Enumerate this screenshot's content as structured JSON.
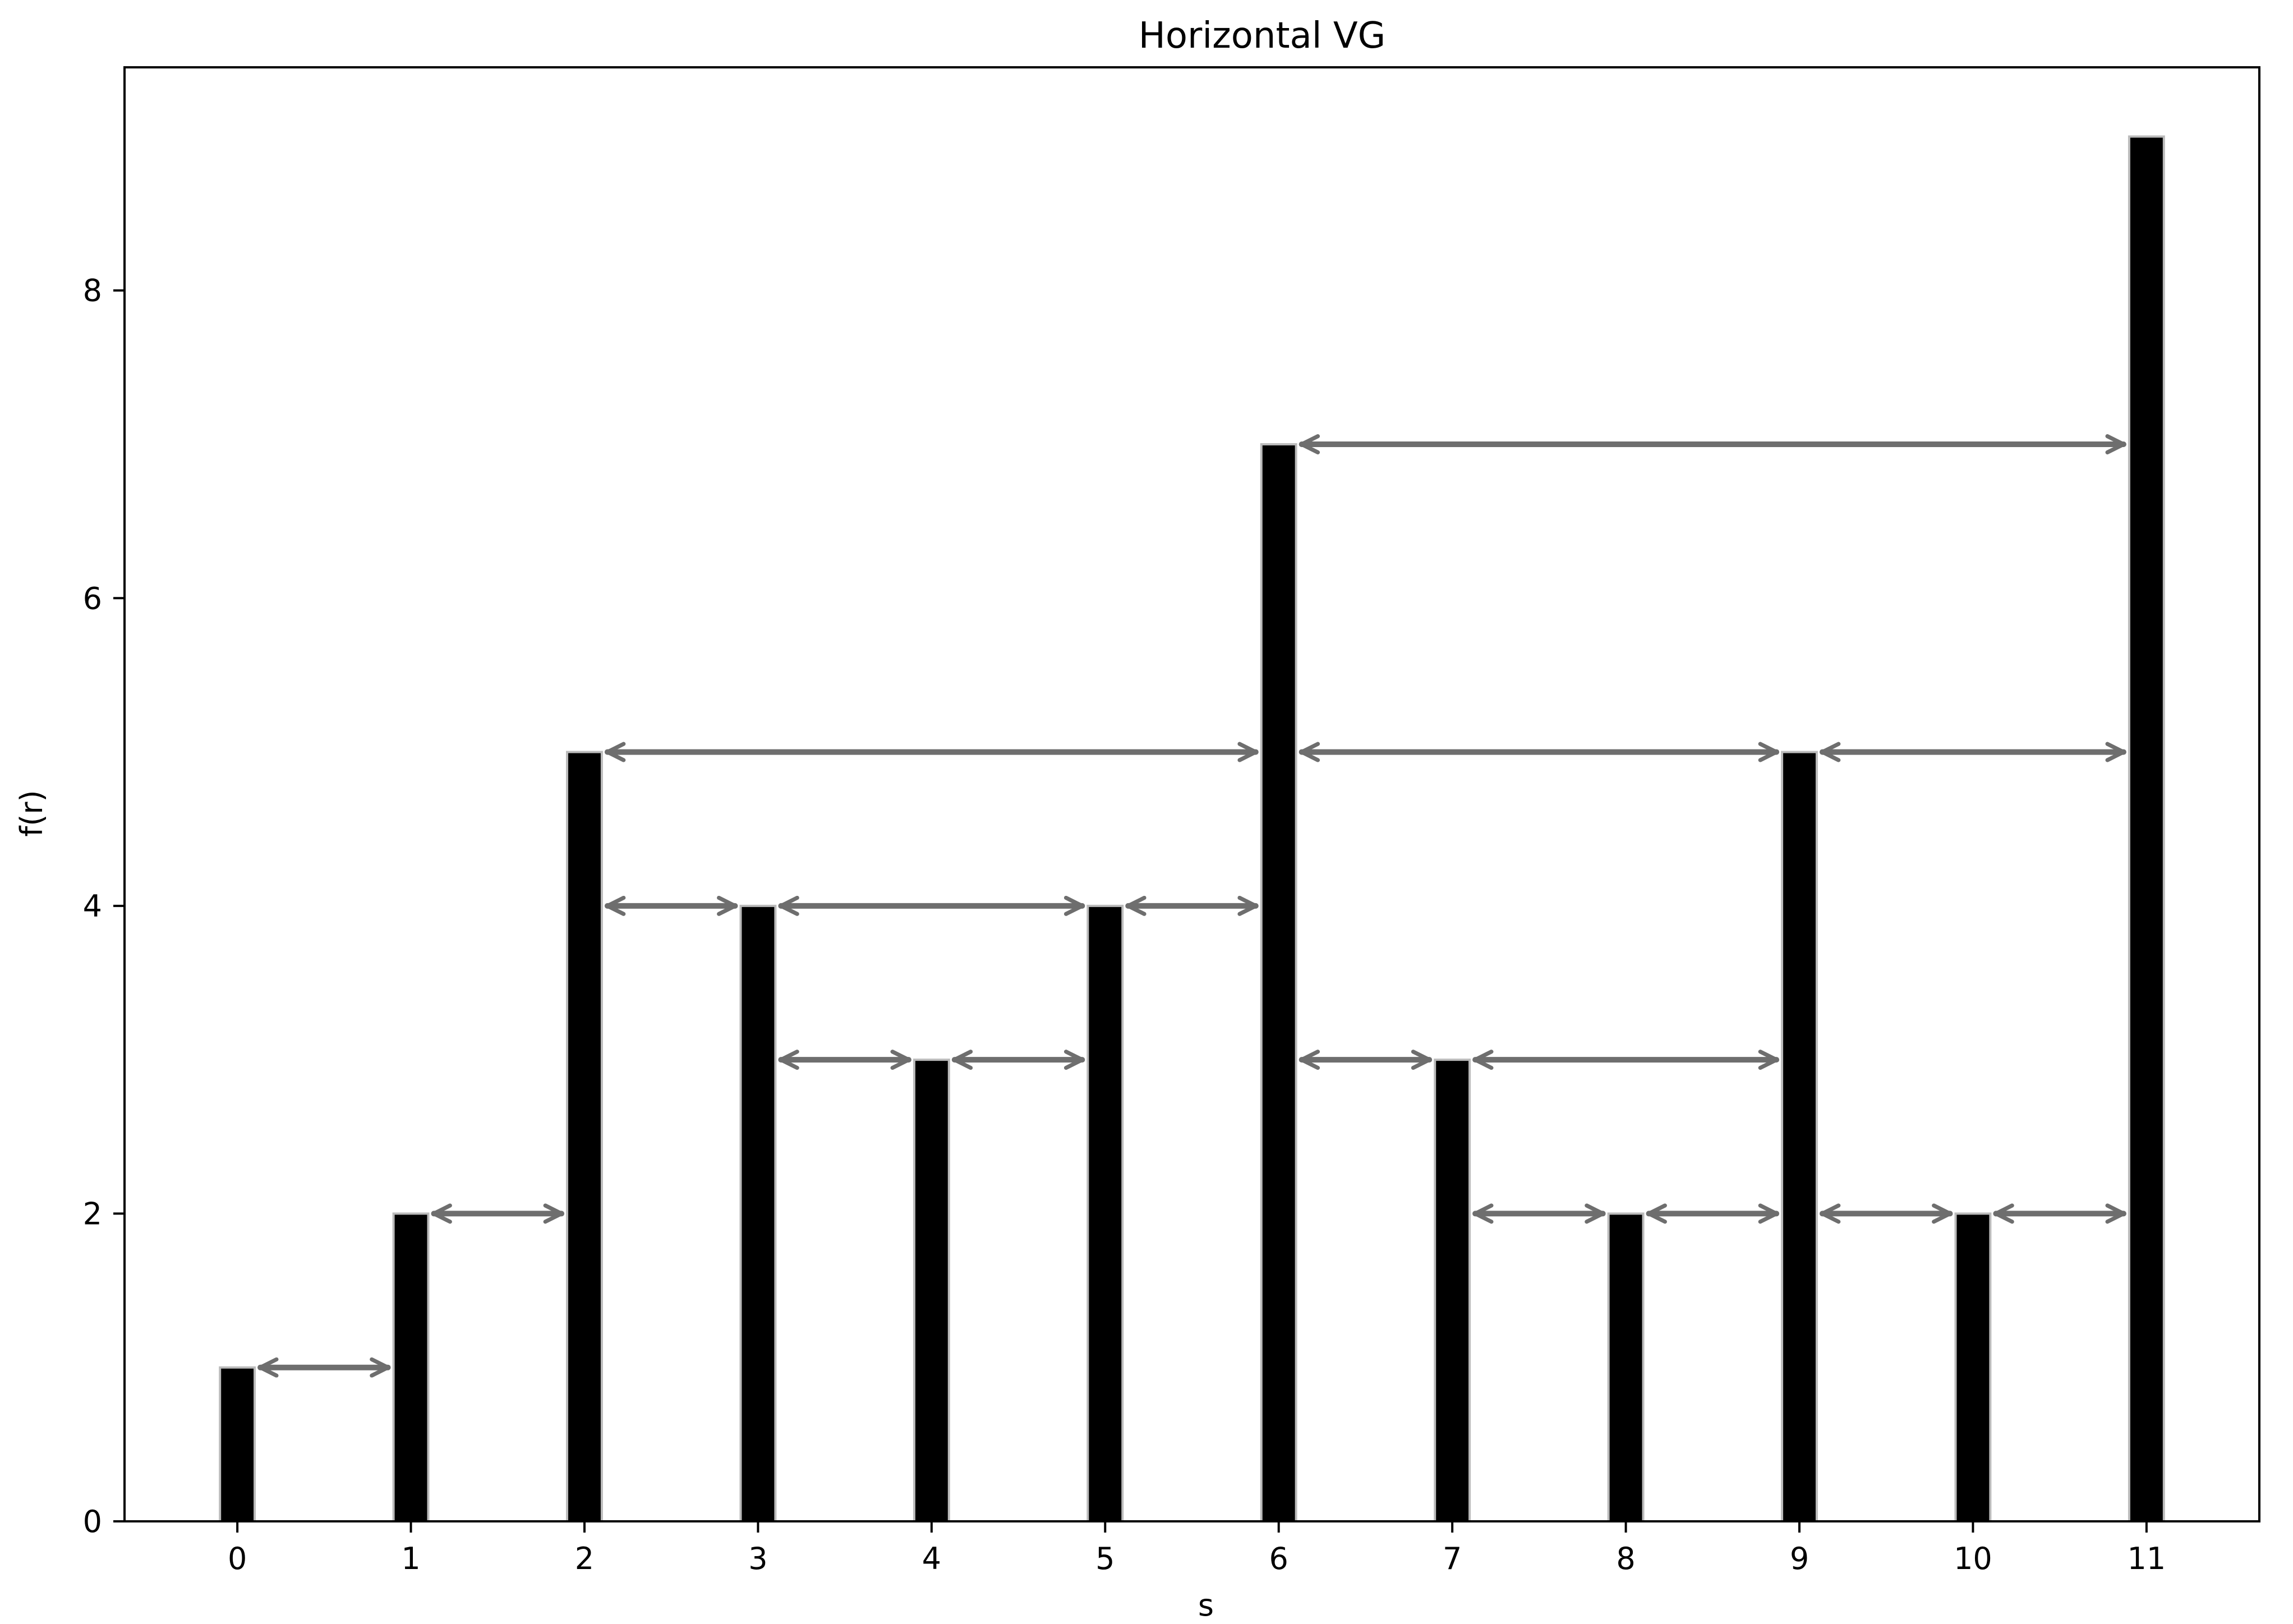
{
  "chart_data": {
    "type": "bar",
    "title": "Horizontal VG",
    "xlabel": "s",
    "ylabel": "f(r)",
    "categories": [
      "0",
      "1",
      "2",
      "3",
      "4",
      "5",
      "6",
      "7",
      "8",
      "9",
      "10",
      "11"
    ],
    "x": [
      0,
      1,
      2,
      3,
      4,
      5,
      6,
      7,
      8,
      9,
      10,
      11
    ],
    "values": [
      1,
      2,
      5,
      4,
      3,
      4,
      7,
      3,
      2,
      5,
      2,
      9
    ],
    "xticks": [
      "0",
      "1",
      "2",
      "3",
      "4",
      "5",
      "6",
      "7",
      "8",
      "9",
      "10",
      "11"
    ],
    "yticks": [
      "0",
      "2",
      "4",
      "6",
      "8"
    ],
    "ytick_values": [
      0,
      2,
      4,
      6,
      8
    ],
    "xlim": [
      -0.65,
      11.65
    ],
    "ylim": [
      0,
      9.45
    ],
    "grid": false,
    "bar_color": "#000000",
    "edge_color": "#bbbbbb",
    "arrow_color": "#6e6e6e",
    "visibility_edges": [
      {
        "from": 0,
        "to": 1,
        "y": 1
      },
      {
        "from": 1,
        "to": 2,
        "y": 2
      },
      {
        "from": 2,
        "to": 3,
        "y": 4
      },
      {
        "from": 2,
        "to": 6,
        "y": 5
      },
      {
        "from": 3,
        "to": 4,
        "y": 3
      },
      {
        "from": 3,
        "to": 5,
        "y": 4
      },
      {
        "from": 4,
        "to": 5,
        "y": 3
      },
      {
        "from": 5,
        "to": 6,
        "y": 4
      },
      {
        "from": 6,
        "to": 7,
        "y": 3
      },
      {
        "from": 6,
        "to": 9,
        "y": 5
      },
      {
        "from": 6,
        "to": 11,
        "y": 7
      },
      {
        "from": 7,
        "to": 8,
        "y": 2
      },
      {
        "from": 7,
        "to": 9,
        "y": 3
      },
      {
        "from": 8,
        "to": 9,
        "y": 2
      },
      {
        "from": 9,
        "to": 10,
        "y": 2
      },
      {
        "from": 9,
        "to": 11,
        "y": 5
      },
      {
        "from": 10,
        "to": 11,
        "y": 2
      }
    ]
  }
}
